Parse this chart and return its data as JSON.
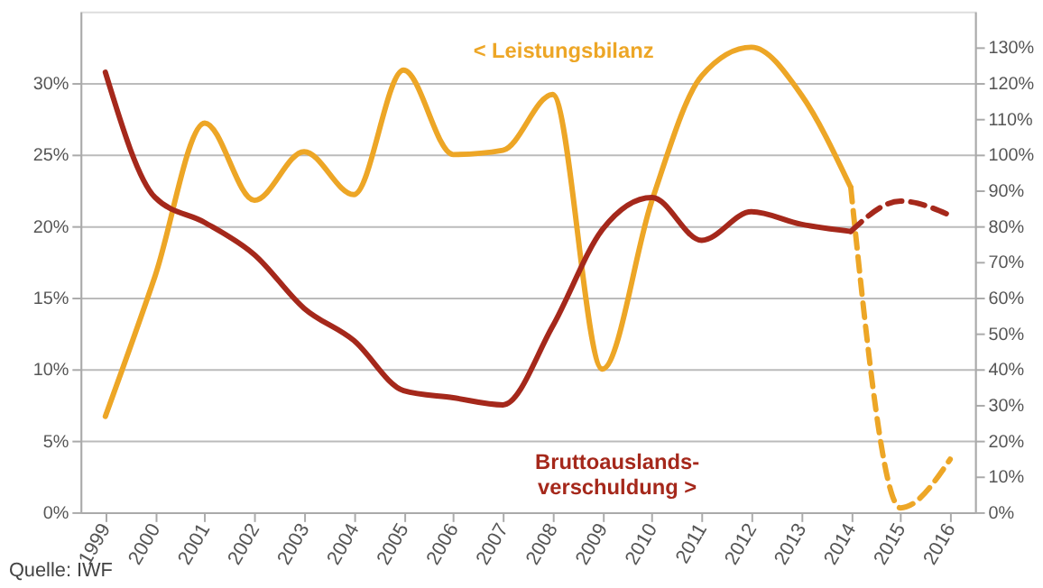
{
  "chart_data": {
    "type": "line",
    "categories": [
      "1999",
      "2000",
      "2001",
      "2002",
      "2003",
      "2004",
      "2005",
      "2006",
      "2007",
      "2008",
      "2009",
      "2010",
      "2011",
      "2012",
      "2013",
      "2014",
      "2015",
      "2016"
    ],
    "series": [
      {
        "color": "#eda626",
        "line_style": "solid",
        "values": [
          6.7,
          16.5,
          27.2,
          21.8,
          25.2,
          22.2,
          30.9,
          25.0,
          25.3,
          29.2,
          10.0,
          21.8,
          30.5,
          32.5,
          29.2,
          22.7,
          null,
          null
        ]
      },
      {
        "color": "#eda626",
        "line_style": "dashed",
        "values": [
          null,
          null,
          null,
          null,
          null,
          null,
          null,
          null,
          null,
          null,
          null,
          null,
          null,
          null,
          null,
          22.7,
          0.3,
          3.7
        ]
      },
      {
        "color": "#a5281b",
        "line_style": "solid",
        "axis": "y2",
        "values": [
          123,
          88,
          81,
          72,
          57,
          48,
          34,
          32,
          30,
          52,
          79,
          88,
          76,
          84,
          80.5,
          78.5,
          null,
          null
        ]
      },
      {
        "color": "#a5281b",
        "line_style": "dashed",
        "axis": "y2",
        "values": [
          null,
          null,
          null,
          null,
          null,
          null,
          null,
          null,
          null,
          null,
          null,
          null,
          null,
          null,
          null,
          78.5,
          87,
          83
        ]
      }
    ],
    "ylim": [
      0,
      35
    ],
    "yticks": [
      {
        "value": 0,
        "label": "0%"
      },
      {
        "value": 5,
        "label": "5%"
      },
      {
        "value": 10,
        "label": "10%"
      },
      {
        "value": 15,
        "label": "15%"
      },
      {
        "value": 20,
        "label": "20%"
      },
      {
        "value": 25,
        "label": "25%"
      },
      {
        "value": 30,
        "label": "30%"
      }
    ],
    "y2lim": [
      0,
      140
    ],
    "y2ticks": [
      {
        "value": 0,
        "label": "0%"
      },
      {
        "value": 10,
        "label": "10%"
      },
      {
        "value": 20,
        "label": "20%"
      },
      {
        "value": 30,
        "label": "30%"
      },
      {
        "value": 40,
        "label": "40%"
      },
      {
        "value": 50,
        "label": "50%"
      },
      {
        "value": 60,
        "label": "60%"
      },
      {
        "value": 70,
        "label": "70%"
      },
      {
        "value": 80,
        "label": "80%"
      },
      {
        "value": 90,
        "label": "90%"
      },
      {
        "value": 100,
        "label": "100%"
      },
      {
        "value": 110,
        "label": "110%"
      },
      {
        "value": 120,
        "label": "120%"
      },
      {
        "value": 130,
        "label": "130%"
      }
    ],
    "grid": "y",
    "marker": "none",
    "annotations": [
      "< Leistungsbilanz",
      "Bruttoauslands-\nverschuldung >",
      "Quelle: IWF"
    ]
  }
}
